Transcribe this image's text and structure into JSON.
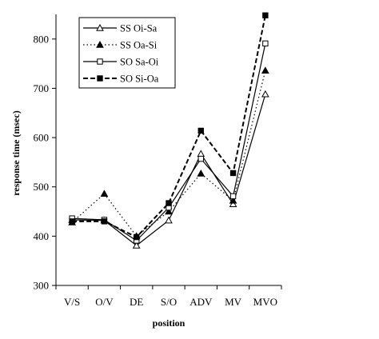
{
  "chart_data": {
    "type": "line",
    "xlabel": "position",
    "ylabel": "response time (msec)",
    "categories": [
      "V/S",
      "O/V",
      "DE",
      "S/O",
      "ADV",
      "MV",
      "MVO"
    ],
    "ylim": [
      300,
      850
    ],
    "yticks": [
      300,
      400,
      500,
      600,
      700,
      800
    ],
    "grid": false,
    "legend_position": "top-left",
    "series": [
      {
        "name": "SS Oi-Sa",
        "marker": "open-triangle",
        "line": "solid",
        "color": "#000000",
        "values": [
          433,
          432,
          381,
          432,
          567,
          465,
          688
        ]
      },
      {
        "name": "SS Oa-Si",
        "marker": "filled-triangle",
        "line": "dotted",
        "color": "#000000",
        "values": [
          428,
          486,
          400,
          450,
          527,
          472,
          736
        ]
      },
      {
        "name": "SO Sa-Oi",
        "marker": "open-square",
        "line": "solid",
        "color": "#000000",
        "values": [
          436,
          433,
          391,
          458,
          557,
          481,
          791
        ]
      },
      {
        "name": "SO Si-Oa",
        "marker": "filled-square",
        "line": "dashed",
        "color": "#000000",
        "values": [
          430,
          430,
          398,
          467,
          614,
          528,
          848
        ]
      }
    ]
  }
}
